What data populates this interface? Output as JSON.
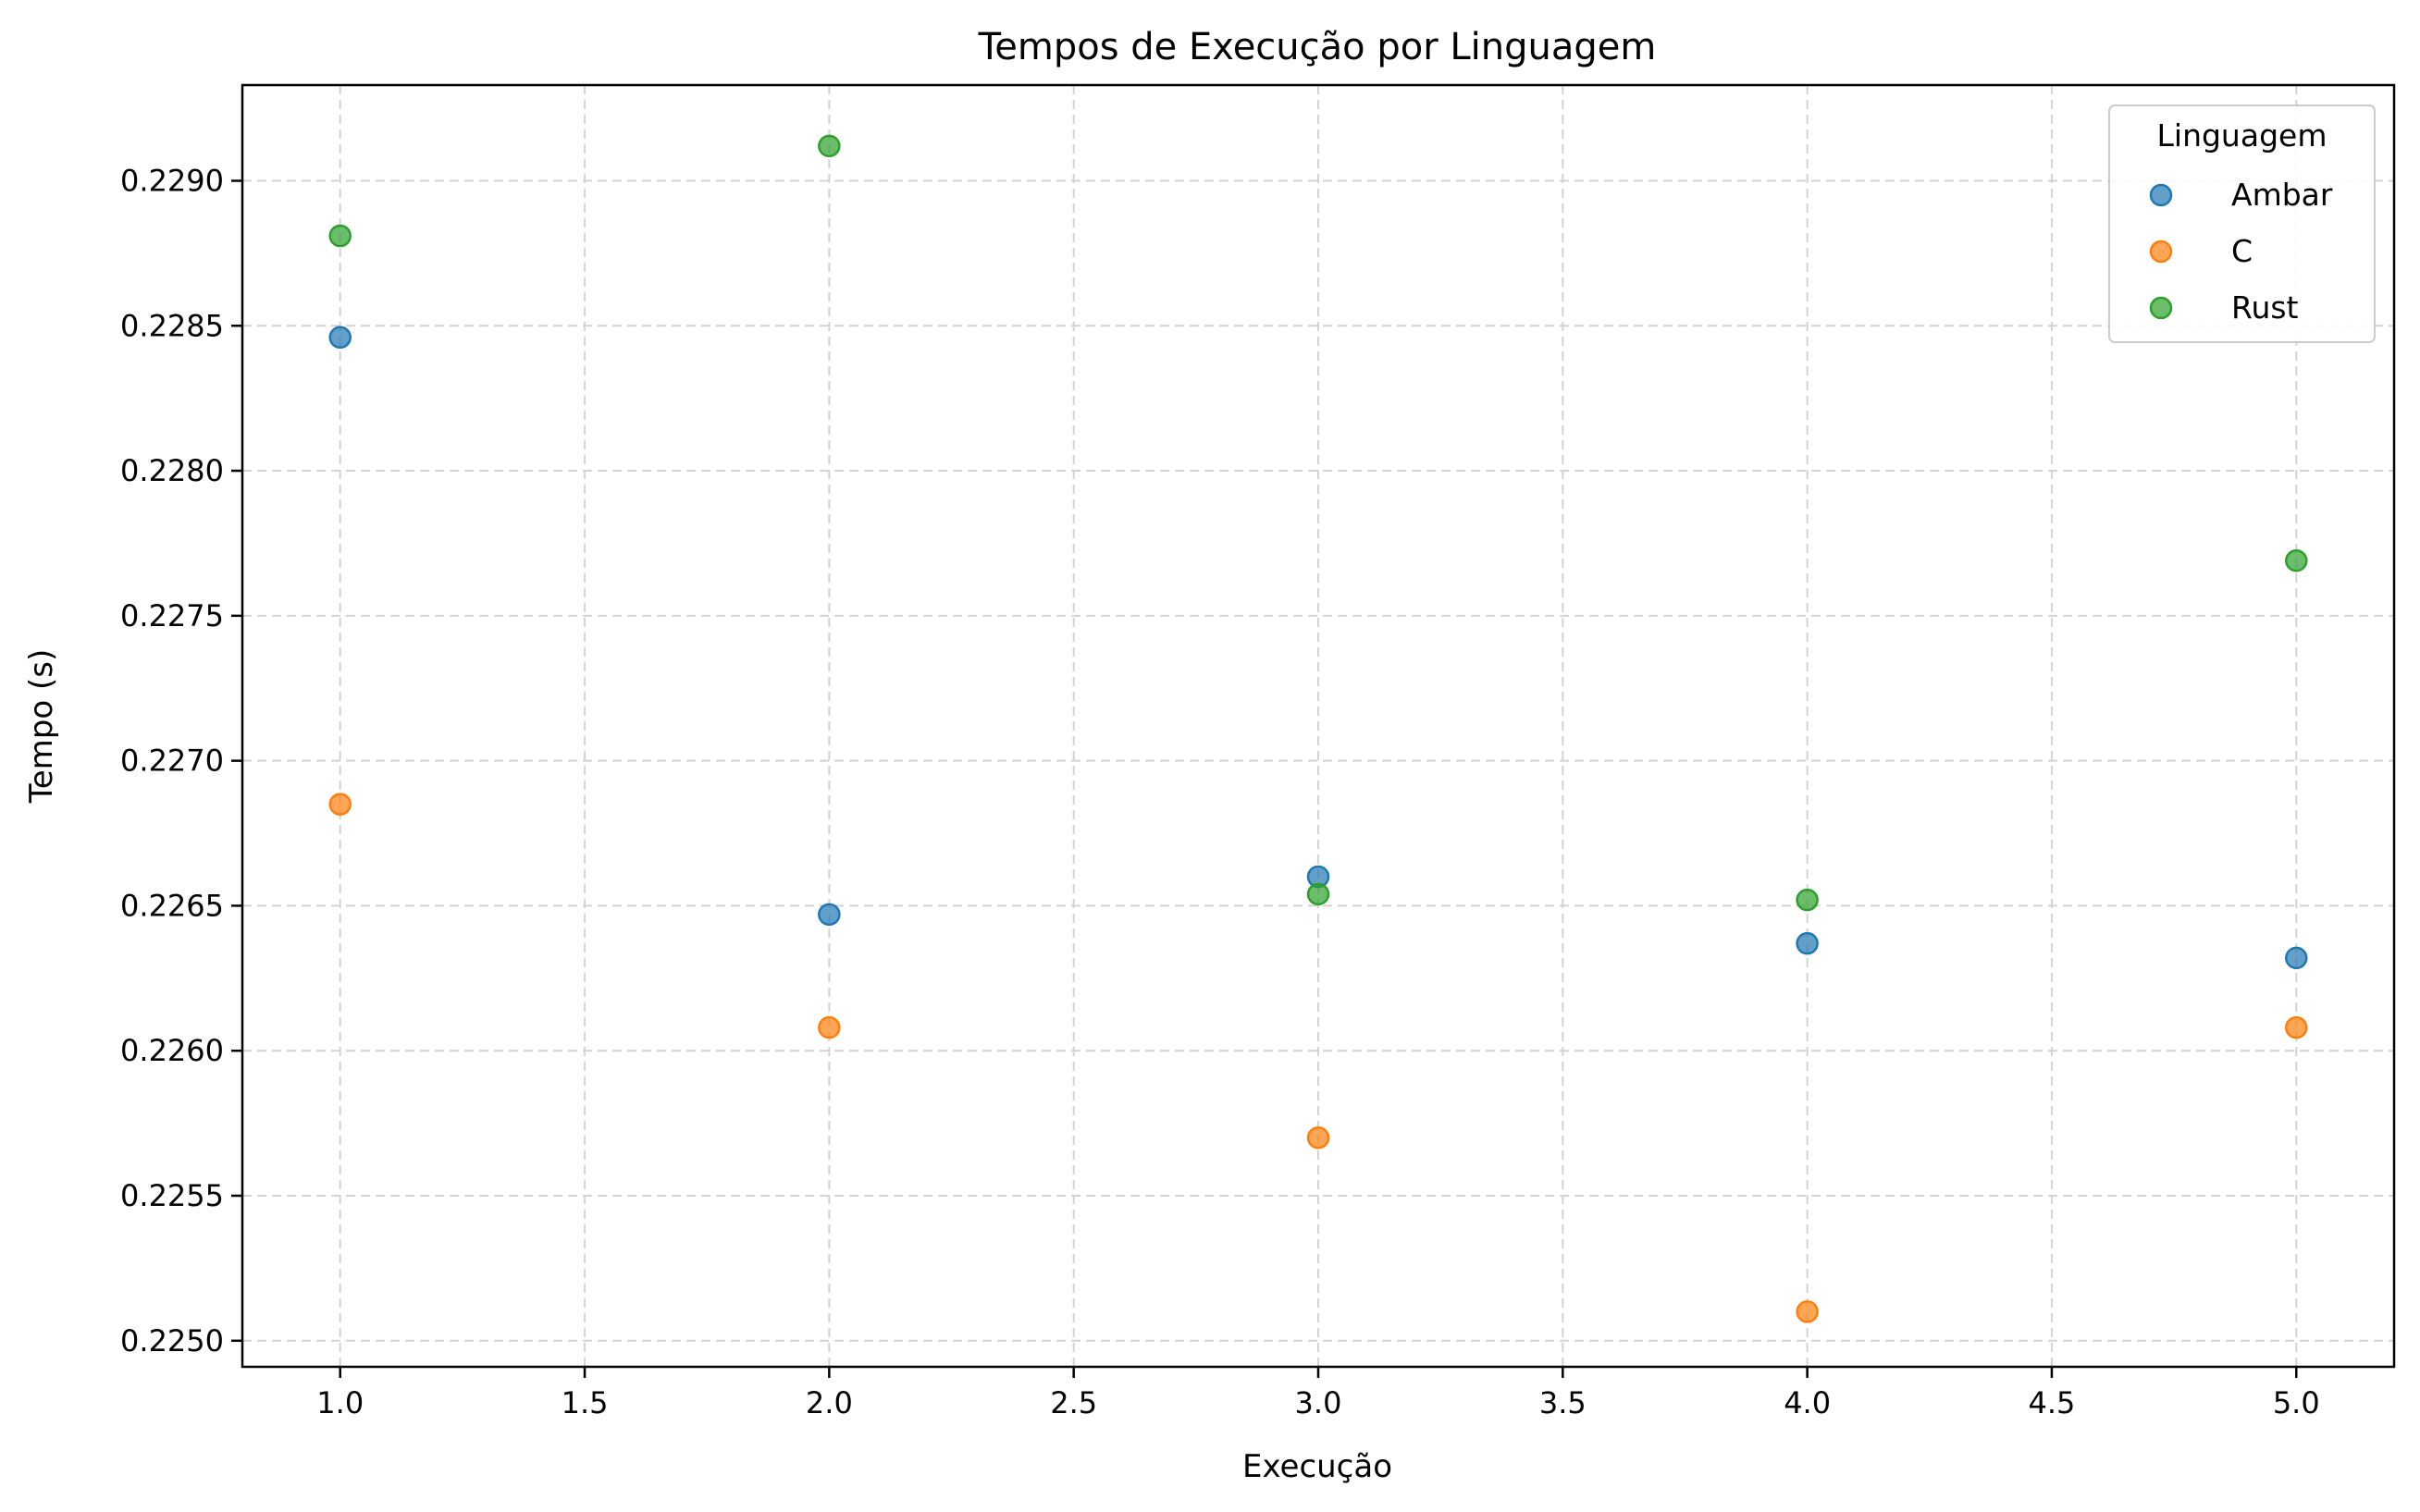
{
  "chart_data": {
    "type": "scatter",
    "title": "Tempos de Execução por Linguagem",
    "xlabel": "Execução",
    "ylabel": "Tempo (s)",
    "xlim": [
      0.8,
      5.2
    ],
    "ylim": [
      0.22491,
      0.22933
    ],
    "xticks": [
      1.0,
      1.5,
      2.0,
      2.5,
      3.0,
      3.5,
      4.0,
      4.5,
      5.0
    ],
    "xtick_labels": [
      "1.0",
      "1.5",
      "2.0",
      "2.5",
      "3.0",
      "3.5",
      "4.0",
      "4.5",
      "5.0"
    ],
    "yticks": [
      0.225,
      0.2255,
      0.226,
      0.2265,
      0.227,
      0.2275,
      0.228,
      0.2285,
      0.229
    ],
    "ytick_labels": [
      "0.2250",
      "0.2255",
      "0.2260",
      "0.2265",
      "0.2270",
      "0.2275",
      "0.2280",
      "0.2285",
      "0.2290"
    ],
    "grid": true,
    "legend": {
      "title": "Linguagem",
      "placement": "top-right"
    },
    "series": [
      {
        "name": "Ambar",
        "color": "#1f77b4",
        "x": [
          1,
          2,
          3,
          4,
          5
        ],
        "y": [
          0.22846,
          0.22647,
          0.2266,
          0.22637,
          0.22632
        ]
      },
      {
        "name": "C",
        "color": "#ff7f0e",
        "x": [
          1,
          2,
          3,
          4,
          5
        ],
        "y": [
          0.22685,
          0.22608,
          0.2257,
          0.2251,
          0.22608
        ]
      },
      {
        "name": "Rust",
        "color": "#2ca02c",
        "x": [
          1,
          2,
          3,
          4,
          5
        ],
        "y": [
          0.22881,
          0.22912,
          0.22654,
          0.22652,
          0.22769
        ]
      }
    ]
  }
}
